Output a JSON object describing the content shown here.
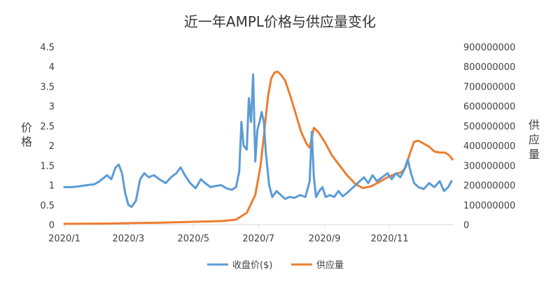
{
  "chart_data": {
    "type": "line",
    "title": "近一年AMPL价格与供应量变化",
    "ylabel_left": "价格",
    "ylabel_right": "供应量",
    "x_ticks": [
      "2020/1",
      "2020/3",
      "2020/5",
      "2020/7",
      "2020/9",
      "2020/11"
    ],
    "y_left_ticks": [
      "0",
      "0.5",
      "1",
      "1.5",
      "2",
      "2.5",
      "3",
      "3.5",
      "4",
      "4.5"
    ],
    "y_right_ticks": [
      "0",
      "100000000",
      "200000000",
      "300000000",
      "400000000",
      "500000000",
      "600000000",
      "700000000",
      "800000000",
      "900000000"
    ],
    "ylim_left": [
      0,
      4.5
    ],
    "ylim_right": [
      0,
      900000000
    ],
    "legend_position": "bottom",
    "grid": false,
    "series": [
      {
        "name": "收盘价($)",
        "color": "#5B9BD5",
        "axis": "left",
        "points": [
          [
            "2020-01-01",
            0.95
          ],
          [
            "2020-01-08",
            0.95
          ],
          [
            "2020-01-15",
            0.97
          ],
          [
            "2020-01-22",
            1.0
          ],
          [
            "2020-01-29",
            1.02
          ],
          [
            "2020-02-03",
            1.1
          ],
          [
            "2020-02-10",
            1.25
          ],
          [
            "2020-02-14",
            1.15
          ],
          [
            "2020-02-18",
            1.45
          ],
          [
            "2020-02-21",
            1.52
          ],
          [
            "2020-02-24",
            1.3
          ],
          [
            "2020-02-27",
            0.8
          ],
          [
            "2020-03-01",
            0.5
          ],
          [
            "2020-03-04",
            0.45
          ],
          [
            "2020-03-08",
            0.6
          ],
          [
            "2020-03-12",
            1.15
          ],
          [
            "2020-03-16",
            1.3
          ],
          [
            "2020-03-20",
            1.2
          ],
          [
            "2020-03-25",
            1.25
          ],
          [
            "2020-03-30",
            1.15
          ],
          [
            "2020-04-05",
            1.05
          ],
          [
            "2020-04-10",
            1.2
          ],
          [
            "2020-04-15",
            1.3
          ],
          [
            "2020-04-19",
            1.45
          ],
          [
            "2020-04-23",
            1.25
          ],
          [
            "2020-04-28",
            1.05
          ],
          [
            "2020-05-03",
            0.92
          ],
          [
            "2020-05-08",
            1.15
          ],
          [
            "2020-05-12",
            1.05
          ],
          [
            "2020-05-17",
            0.95
          ],
          [
            "2020-05-22",
            0.98
          ],
          [
            "2020-05-27",
            1.0
          ],
          [
            "2020-06-01",
            0.92
          ],
          [
            "2020-06-06",
            0.88
          ],
          [
            "2020-06-10",
            0.95
          ],
          [
            "2020-06-13",
            1.35
          ],
          [
            "2020-06-15",
            2.6
          ],
          [
            "2020-06-17",
            2.0
          ],
          [
            "2020-06-20",
            1.9
          ],
          [
            "2020-06-22",
            3.2
          ],
          [
            "2020-06-24",
            2.6
          ],
          [
            "2020-06-26",
            3.8
          ],
          [
            "2020-06-28",
            1.6
          ],
          [
            "2020-06-30",
            2.4
          ],
          [
            "2020-07-02",
            2.6
          ],
          [
            "2020-07-04",
            2.85
          ],
          [
            "2020-07-06",
            2.6
          ],
          [
            "2020-07-08",
            1.8
          ],
          [
            "2020-07-11",
            1.0
          ],
          [
            "2020-07-14",
            0.7
          ],
          [
            "2020-07-18",
            0.85
          ],
          [
            "2020-07-22",
            0.75
          ],
          [
            "2020-07-26",
            0.65
          ],
          [
            "2020-07-30",
            0.7
          ],
          [
            "2020-08-04",
            0.68
          ],
          [
            "2020-08-09",
            0.75
          ],
          [
            "2020-08-14",
            0.7
          ],
          [
            "2020-08-18",
            1.1
          ],
          [
            "2020-08-20",
            2.35
          ],
          [
            "2020-08-22",
            1.2
          ],
          [
            "2020-08-24",
            0.7
          ],
          [
            "2020-08-27",
            0.85
          ],
          [
            "2020-08-30",
            0.95
          ],
          [
            "2020-09-02",
            0.7
          ],
          [
            "2020-09-06",
            0.75
          ],
          [
            "2020-09-10",
            0.7
          ],
          [
            "2020-09-14",
            0.85
          ],
          [
            "2020-09-18",
            0.72
          ],
          [
            "2020-09-22",
            0.8
          ],
          [
            "2020-09-26",
            0.9
          ],
          [
            "2020-09-30",
            1.0
          ],
          [
            "2020-10-04",
            1.1
          ],
          [
            "2020-10-08",
            1.2
          ],
          [
            "2020-10-12",
            1.05
          ],
          [
            "2020-10-16",
            1.25
          ],
          [
            "2020-10-20",
            1.1
          ],
          [
            "2020-10-25",
            1.2
          ],
          [
            "2020-10-30",
            1.3
          ],
          [
            "2020-11-03",
            1.15
          ],
          [
            "2020-11-07",
            1.3
          ],
          [
            "2020-11-11",
            1.2
          ],
          [
            "2020-11-15",
            1.4
          ],
          [
            "2020-11-18",
            1.65
          ],
          [
            "2020-11-21",
            1.3
          ],
          [
            "2020-11-24",
            1.05
          ],
          [
            "2020-11-28",
            0.95
          ],
          [
            "2020-12-03",
            0.9
          ],
          [
            "2020-12-08",
            1.05
          ],
          [
            "2020-12-13",
            0.95
          ],
          [
            "2020-12-18",
            1.1
          ],
          [
            "2020-12-22",
            0.85
          ],
          [
            "2020-12-26",
            0.95
          ],
          [
            "2020-12-29",
            1.1
          ]
        ]
      },
      {
        "name": "供应量",
        "color": "#ED7D31",
        "axis": "right",
        "points": [
          [
            "2020-01-01",
            4000000
          ],
          [
            "2020-02-01",
            5000000
          ],
          [
            "2020-02-20",
            6000000
          ],
          [
            "2020-03-05",
            8000000
          ],
          [
            "2020-04-01",
            10000000
          ],
          [
            "2020-05-01",
            14000000
          ],
          [
            "2020-05-28",
            18000000
          ],
          [
            "2020-06-10",
            25000000
          ],
          [
            "2020-06-20",
            60000000
          ],
          [
            "2020-06-28",
            150000000
          ],
          [
            "2020-07-03",
            300000000
          ],
          [
            "2020-07-07",
            500000000
          ],
          [
            "2020-07-10",
            650000000
          ],
          [
            "2020-07-13",
            740000000
          ],
          [
            "2020-07-16",
            770000000
          ],
          [
            "2020-07-19",
            775000000
          ],
          [
            "2020-07-22",
            760000000
          ],
          [
            "2020-07-26",
            730000000
          ],
          [
            "2020-07-31",
            650000000
          ],
          [
            "2020-08-05",
            560000000
          ],
          [
            "2020-08-10",
            470000000
          ],
          [
            "2020-08-15",
            410000000
          ],
          [
            "2020-08-18",
            390000000
          ],
          [
            "2020-08-20",
            440000000
          ],
          [
            "2020-08-22",
            490000000
          ],
          [
            "2020-08-26",
            470000000
          ],
          [
            "2020-09-01",
            420000000
          ],
          [
            "2020-09-08",
            350000000
          ],
          [
            "2020-09-15",
            300000000
          ],
          [
            "2020-09-22",
            250000000
          ],
          [
            "2020-09-30",
            205000000
          ],
          [
            "2020-10-07",
            185000000
          ],
          [
            "2020-10-15",
            195000000
          ],
          [
            "2020-10-22",
            215000000
          ],
          [
            "2020-10-30",
            240000000
          ],
          [
            "2020-11-06",
            255000000
          ],
          [
            "2020-11-12",
            265000000
          ],
          [
            "2020-11-16",
            290000000
          ],
          [
            "2020-11-20",
            360000000
          ],
          [
            "2020-11-24",
            420000000
          ],
          [
            "2020-11-28",
            425000000
          ],
          [
            "2020-12-03",
            410000000
          ],
          [
            "2020-12-08",
            395000000
          ],
          [
            "2020-12-13",
            370000000
          ],
          [
            "2020-12-18",
            365000000
          ],
          [
            "2020-12-23",
            365000000
          ],
          [
            "2020-12-27",
            350000000
          ],
          [
            "2020-12-30",
            330000000
          ]
        ]
      }
    ]
  }
}
